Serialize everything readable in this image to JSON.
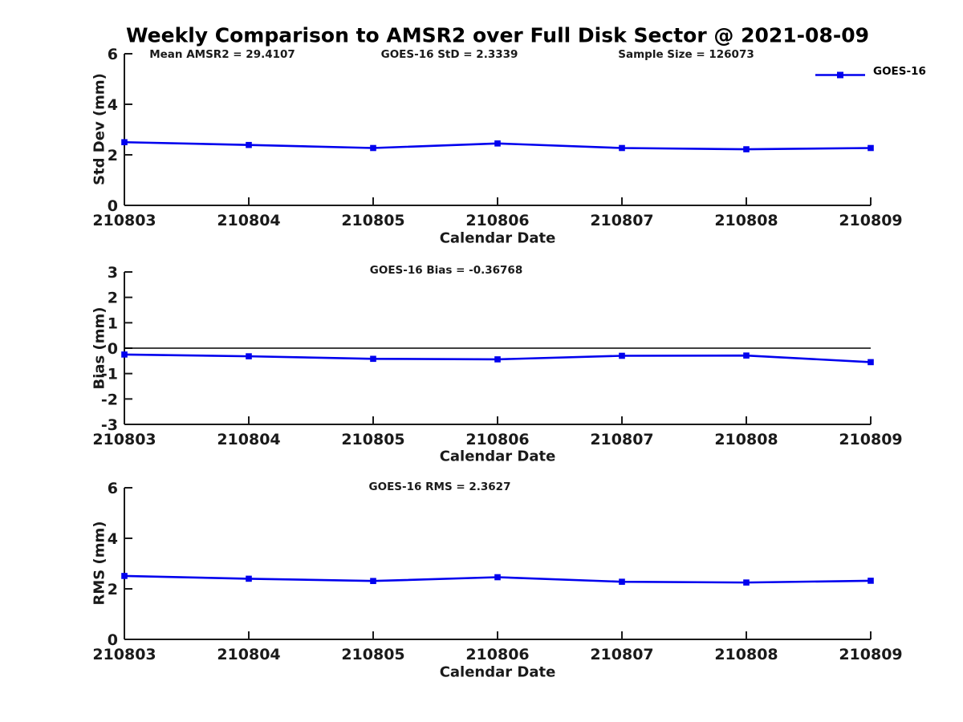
{
  "title": "Weekly Comparison to AMSR2 over Full Disk Sector @ 2021-08-09",
  "header_annotations": {
    "mean_amsr2": "Mean AMSR2 = 29.4107",
    "goes16_std": "GOES-16 StD = 2.3339",
    "sample_size": "Sample Size = 126073"
  },
  "legend": {
    "label": "GOES-16",
    "position": "top-right"
  },
  "colors": {
    "line": "#0000ee",
    "axis": "#1a1a1a",
    "text": "#1a1a1a",
    "zero_line": "#000000",
    "background": "#ffffff"
  },
  "chart_data": [
    {
      "type": "line",
      "categories": [
        "210803",
        "210804",
        "210805",
        "210806",
        "210807",
        "210808",
        "210809"
      ],
      "series": [
        {
          "name": "GOES-16",
          "values": [
            2.5,
            2.39,
            2.27,
            2.45,
            2.27,
            2.22,
            2.27
          ]
        }
      ],
      "annotation": "",
      "xlabel": "Calendar Date",
      "ylabel": "Std Dev (mm)",
      "ylim": [
        0,
        6
      ],
      "yticks": [
        0,
        2,
        4,
        6
      ],
      "grid": false,
      "zero_line": false,
      "marker": "square"
    },
    {
      "type": "line",
      "categories": [
        "210803",
        "210804",
        "210805",
        "210806",
        "210807",
        "210808",
        "210809"
      ],
      "series": [
        {
          "name": "GOES-16",
          "values": [
            -0.25,
            -0.32,
            -0.42,
            -0.44,
            -0.3,
            -0.29,
            -0.55
          ]
        }
      ],
      "annotation": "GOES-16 Bias  = -0.36768",
      "xlabel": "Calendar Date",
      "ylabel": "Bias (mm)",
      "ylim": [
        -3,
        3
      ],
      "yticks": [
        -3,
        -2,
        -1,
        0,
        1,
        2,
        3
      ],
      "grid": false,
      "zero_line": true,
      "marker": "square"
    },
    {
      "type": "line",
      "categories": [
        "210803",
        "210804",
        "210805",
        "210806",
        "210807",
        "210808",
        "210809"
      ],
      "series": [
        {
          "name": "GOES-16",
          "values": [
            2.51,
            2.4,
            2.31,
            2.46,
            2.28,
            2.25,
            2.32
          ]
        }
      ],
      "annotation": "GOES-16 RMS = 2.3627",
      "xlabel": "Calendar Date",
      "ylabel": "RMS (mm)",
      "ylim": [
        0,
        6
      ],
      "yticks": [
        0,
        2,
        4,
        6
      ],
      "grid": false,
      "zero_line": false,
      "marker": "square"
    }
  ]
}
